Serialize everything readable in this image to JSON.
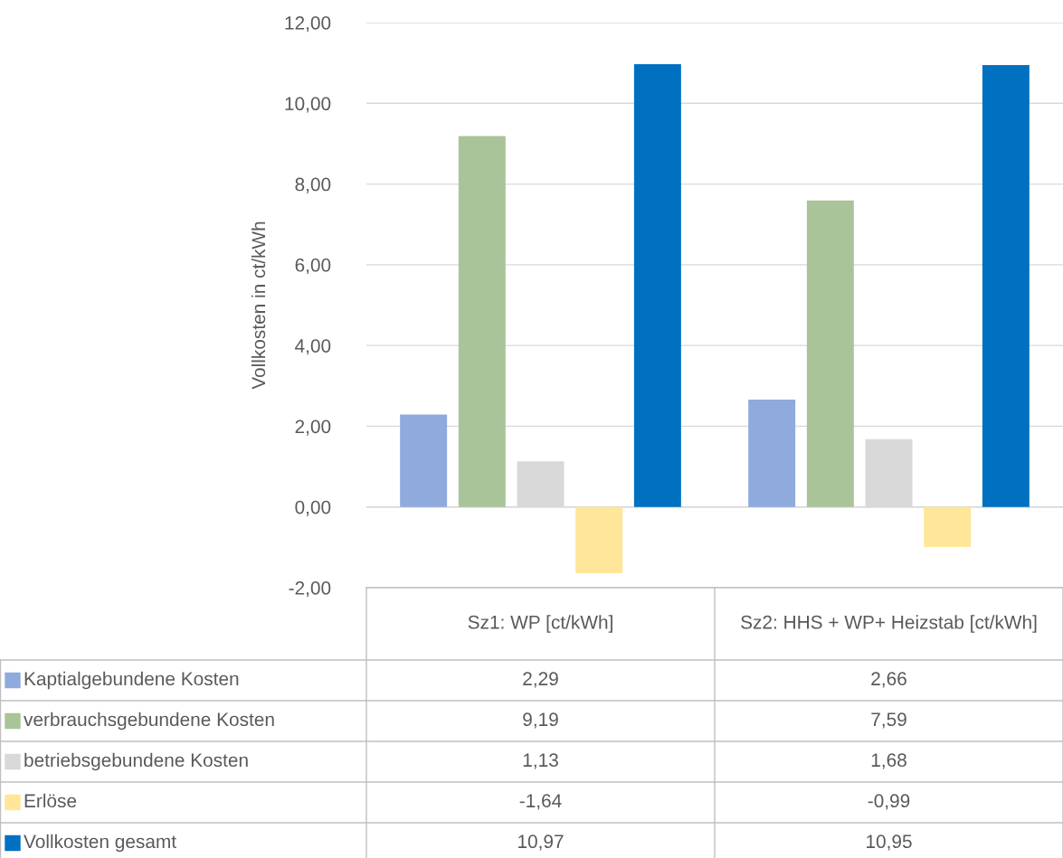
{
  "chart_data": {
    "type": "bar",
    "ylabel": "Vollkosten in ct/kWh",
    "categories": [
      "Sz1: WP [ct/kWh]",
      "Sz2: HHS + WP+ Heizstab [ct/kWh]"
    ],
    "series": [
      {
        "name": "Kaptialgebundene Kosten",
        "color": "#8faadc",
        "values": [
          2.29,
          2.66
        ],
        "value_labels": [
          "2,29",
          "2,66"
        ]
      },
      {
        "name": "verbrauchsgebundene Kosten",
        "color": "#a9c499",
        "values": [
          9.19,
          7.59
        ],
        "value_labels": [
          "9,19",
          "7,59"
        ]
      },
      {
        "name": "betriebsgebundene Kosten",
        "color": "#d9d9d9",
        "values": [
          1.13,
          1.68
        ],
        "value_labels": [
          "1,13",
          "1,68"
        ]
      },
      {
        "name": "Erlöse",
        "color": "#ffe699",
        "values": [
          -1.64,
          -0.99
        ],
        "value_labels": [
          "-1,64",
          "-0,99"
        ]
      },
      {
        "name": "Vollkosten gesamt",
        "color": "#0070c0",
        "values": [
          10.97,
          10.95
        ],
        "value_labels": [
          "10,97",
          "10,95"
        ]
      }
    ],
    "ylim": [
      -2,
      12
    ],
    "yticks": [
      {
        "value": -2,
        "label": "-2,00"
      },
      {
        "value": 0,
        "label": "0,00"
      },
      {
        "value": 2,
        "label": "2,00"
      },
      {
        "value": 4,
        "label": "4,00"
      },
      {
        "value": 6,
        "label": "6,00"
      },
      {
        "value": 8,
        "label": "8,00"
      },
      {
        "value": 10,
        "label": "10,00"
      },
      {
        "value": 12,
        "label": "12,00"
      }
    ],
    "grid": "y",
    "legend": "bottom"
  }
}
